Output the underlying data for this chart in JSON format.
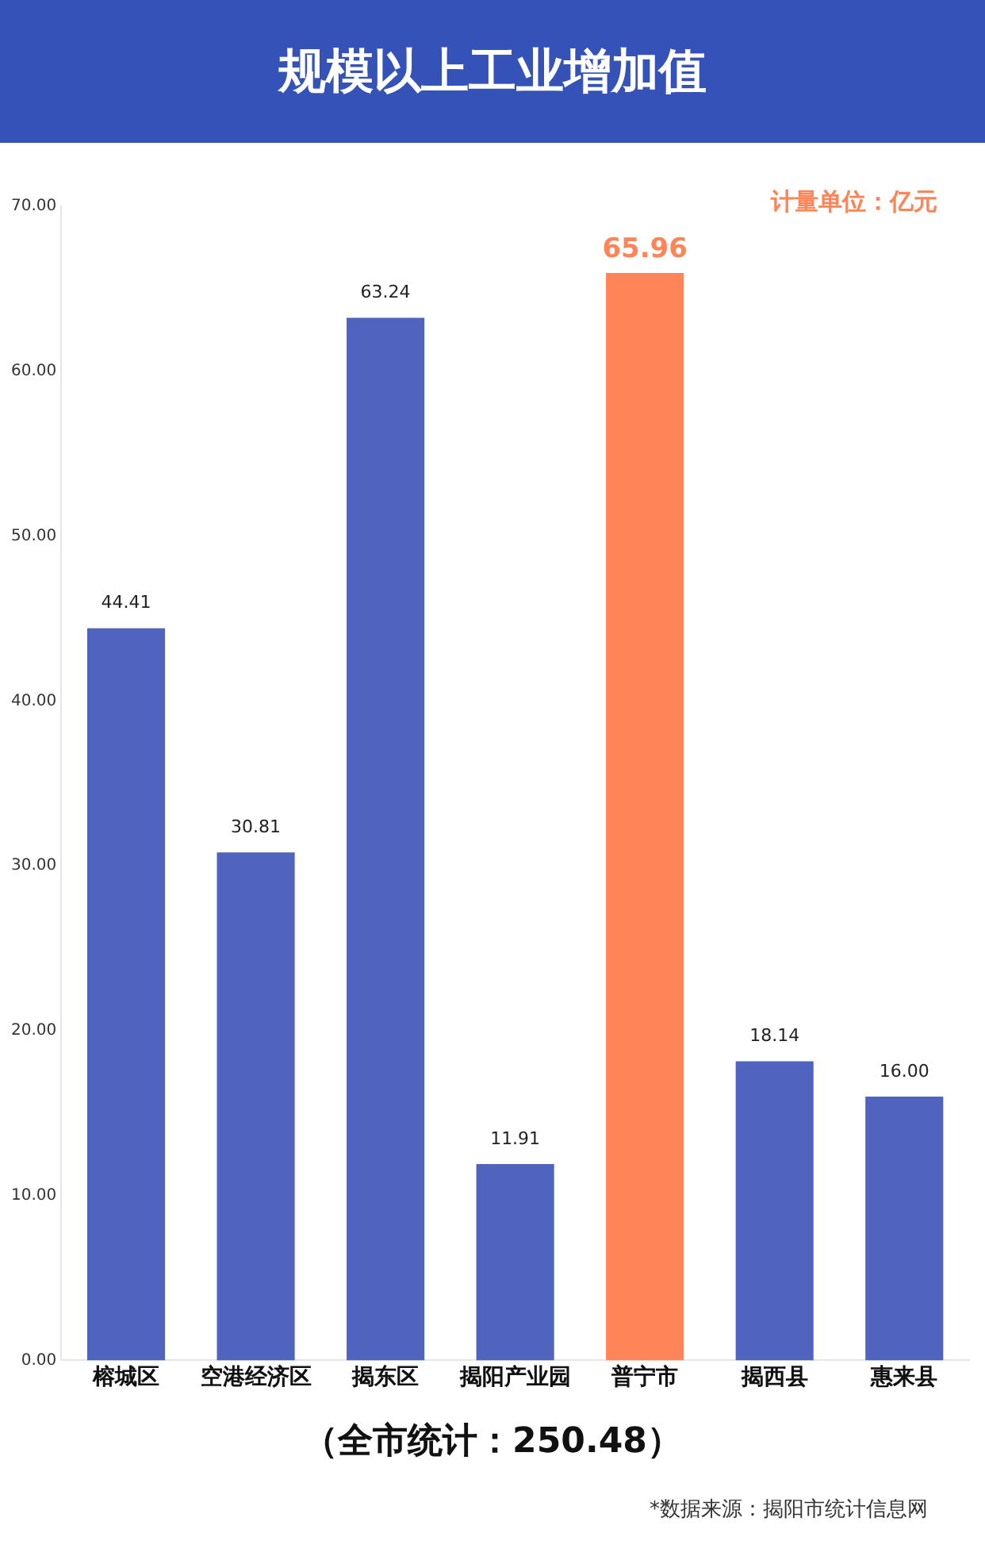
{
  "chart_data": {
    "type": "bar",
    "title": "规模以上工业增加值",
    "categories": [
      "榕城区",
      "空港经济区",
      "揭东区",
      "揭阳产业园",
      "普宁市",
      "揭西县",
      "惠来县"
    ],
    "values": [
      44.41,
      30.81,
      63.24,
      11.91,
      65.96,
      18.14,
      16.0
    ],
    "colors": [
      "#4f63bf",
      "#4f63bf",
      "#4f63bf",
      "#4f63bf",
      "#ff8558",
      "#4f63bf",
      "#4f63bf"
    ],
    "value_labels": [
      "44.41",
      "30.81",
      "63.24",
      "11.91",
      "65.96",
      "18.14",
      "16.00"
    ],
    "ylim": [
      0,
      70
    ],
    "yticks": [
      {
        "value": 0,
        "label": "0.00"
      },
      {
        "value": 10,
        "label": "10.00"
      },
      {
        "value": 20,
        "label": "20.00"
      },
      {
        "value": 30,
        "label": "30.00"
      },
      {
        "value": 40,
        "label": "40.00"
      },
      {
        "value": 50,
        "label": "50.00"
      },
      {
        "value": 60,
        "label": "60.00"
      },
      {
        "value": 70,
        "label": "70.00"
      }
    ],
    "grid": false,
    "legend": false,
    "annotations": [
      "计量单位：亿元",
      "（全市统计：250.48）",
      "*数据来源：揭阳市统计信息网"
    ]
  }
}
